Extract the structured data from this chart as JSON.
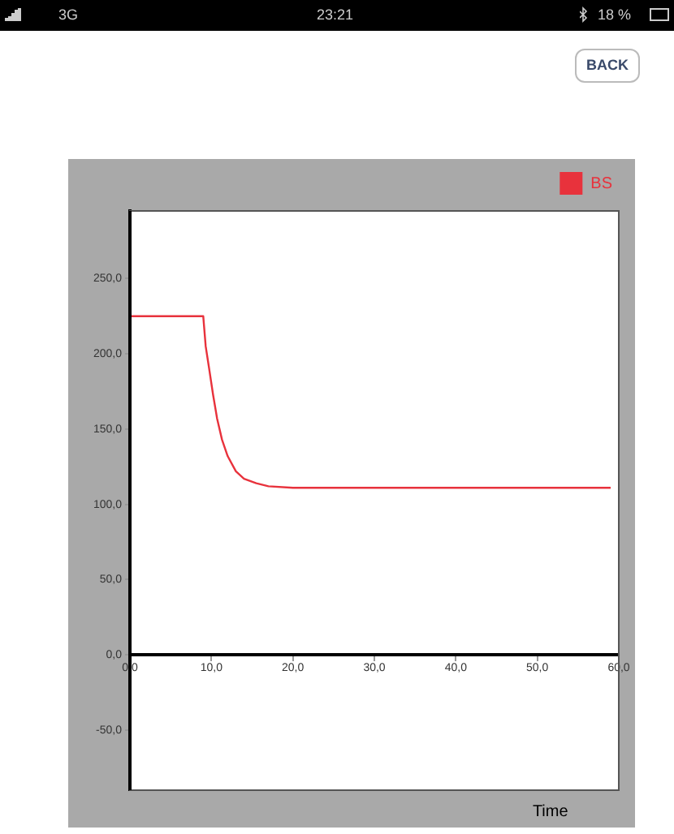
{
  "chart_data": {
    "type": "line",
    "xlabel": "Time",
    "x": [
      0,
      9,
      9.3,
      9.7,
      10.2,
      10.7,
      11.3,
      12,
      13,
      14,
      15.5,
      17,
      20,
      25,
      59
    ],
    "series": [
      {
        "name": "BS",
        "color": "#e8323c",
        "values": [
          225,
          225,
          205,
          191,
          173,
          157,
          143,
          132,
          122,
          117,
          114,
          112,
          111,
          111,
          111
        ]
      }
    ],
    "xlim": [
      0,
      60
    ],
    "xticks": [
      {
        "value": 0,
        "label": "0,0"
      },
      {
        "value": 10,
        "label": "10,0"
      },
      {
        "value": 20,
        "label": "20,0"
      },
      {
        "value": 30,
        "label": "30,0"
      },
      {
        "value": 40,
        "label": "40,0"
      },
      {
        "value": 50,
        "label": "50,0"
      },
      {
        "value": 60,
        "label": "60,0"
      }
    ],
    "ylim": [
      -90,
      295
    ],
    "yticks": [
      {
        "value": -50,
        "label": "-50,0"
      },
      {
        "value": 0,
        "label": "0,0"
      },
      {
        "value": 50,
        "label": "50,0"
      },
      {
        "value": 100,
        "label": "100,0"
      },
      {
        "value": 150,
        "label": "150,0"
      },
      {
        "value": 200,
        "label": "200,0"
      },
      {
        "value": 250,
        "label": "250,0"
      }
    ],
    "grid": false,
    "legend": "top right",
    "marker": "none",
    "line_style": "solid",
    "annotations": [
      "3G",
      "23:21",
      "18 %",
      "BACK"
    ]
  }
}
